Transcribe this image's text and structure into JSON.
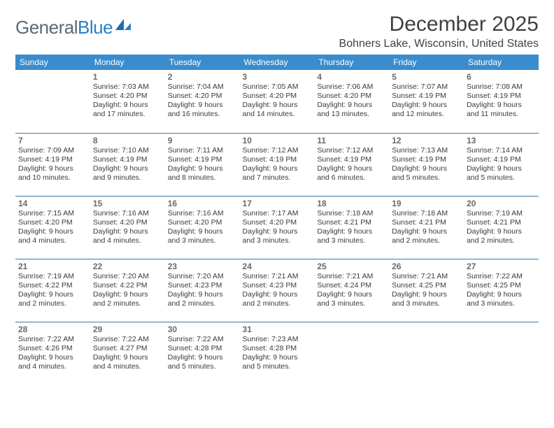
{
  "brand": {
    "name_part1": "General",
    "name_part2": "Blue"
  },
  "title": "December 2025",
  "location": "Bohners Lake, Wisconsin, United States",
  "colors": {
    "header_bg": "#3a8ccc",
    "header_text": "#ffffff",
    "row_divider": "#3a7aa8",
    "daynum_color": "#6a6a6a",
    "body_text": "#3a3a3a",
    "title_color": "#404040",
    "logo_gray": "#5a6a78",
    "logo_blue": "#2a7fc4",
    "background": "#ffffff"
  },
  "typography": {
    "title_fontsize": 30,
    "location_fontsize": 16,
    "header_fontsize": 12,
    "daynum_fontsize": 12,
    "info_fontsize": 10.5,
    "logo_fontsize": 26
  },
  "weekdays": [
    "Sunday",
    "Monday",
    "Tuesday",
    "Wednesday",
    "Thursday",
    "Friday",
    "Saturday"
  ],
  "weeks": [
    [
      null,
      {
        "d": "1",
        "sr": "Sunrise: 7:03 AM",
        "ss": "Sunset: 4:20 PM",
        "dl": "Daylight: 9 hours and 17 minutes."
      },
      {
        "d": "2",
        "sr": "Sunrise: 7:04 AM",
        "ss": "Sunset: 4:20 PM",
        "dl": "Daylight: 9 hours and 16 minutes."
      },
      {
        "d": "3",
        "sr": "Sunrise: 7:05 AM",
        "ss": "Sunset: 4:20 PM",
        "dl": "Daylight: 9 hours and 14 minutes."
      },
      {
        "d": "4",
        "sr": "Sunrise: 7:06 AM",
        "ss": "Sunset: 4:20 PM",
        "dl": "Daylight: 9 hours and 13 minutes."
      },
      {
        "d": "5",
        "sr": "Sunrise: 7:07 AM",
        "ss": "Sunset: 4:19 PM",
        "dl": "Daylight: 9 hours and 12 minutes."
      },
      {
        "d": "6",
        "sr": "Sunrise: 7:08 AM",
        "ss": "Sunset: 4:19 PM",
        "dl": "Daylight: 9 hours and 11 minutes."
      }
    ],
    [
      {
        "d": "7",
        "sr": "Sunrise: 7:09 AM",
        "ss": "Sunset: 4:19 PM",
        "dl": "Daylight: 9 hours and 10 minutes."
      },
      {
        "d": "8",
        "sr": "Sunrise: 7:10 AM",
        "ss": "Sunset: 4:19 PM",
        "dl": "Daylight: 9 hours and 9 minutes."
      },
      {
        "d": "9",
        "sr": "Sunrise: 7:11 AM",
        "ss": "Sunset: 4:19 PM",
        "dl": "Daylight: 9 hours and 8 minutes."
      },
      {
        "d": "10",
        "sr": "Sunrise: 7:12 AM",
        "ss": "Sunset: 4:19 PM",
        "dl": "Daylight: 9 hours and 7 minutes."
      },
      {
        "d": "11",
        "sr": "Sunrise: 7:12 AM",
        "ss": "Sunset: 4:19 PM",
        "dl": "Daylight: 9 hours and 6 minutes."
      },
      {
        "d": "12",
        "sr": "Sunrise: 7:13 AM",
        "ss": "Sunset: 4:19 PM",
        "dl": "Daylight: 9 hours and 5 minutes."
      },
      {
        "d": "13",
        "sr": "Sunrise: 7:14 AM",
        "ss": "Sunset: 4:19 PM",
        "dl": "Daylight: 9 hours and 5 minutes."
      }
    ],
    [
      {
        "d": "14",
        "sr": "Sunrise: 7:15 AM",
        "ss": "Sunset: 4:20 PM",
        "dl": "Daylight: 9 hours and 4 minutes."
      },
      {
        "d": "15",
        "sr": "Sunrise: 7:16 AM",
        "ss": "Sunset: 4:20 PM",
        "dl": "Daylight: 9 hours and 4 minutes."
      },
      {
        "d": "16",
        "sr": "Sunrise: 7:16 AM",
        "ss": "Sunset: 4:20 PM",
        "dl": "Daylight: 9 hours and 3 minutes."
      },
      {
        "d": "17",
        "sr": "Sunrise: 7:17 AM",
        "ss": "Sunset: 4:20 PM",
        "dl": "Daylight: 9 hours and 3 minutes."
      },
      {
        "d": "18",
        "sr": "Sunrise: 7:18 AM",
        "ss": "Sunset: 4:21 PM",
        "dl": "Daylight: 9 hours and 3 minutes."
      },
      {
        "d": "19",
        "sr": "Sunrise: 7:18 AM",
        "ss": "Sunset: 4:21 PM",
        "dl": "Daylight: 9 hours and 2 minutes."
      },
      {
        "d": "20",
        "sr": "Sunrise: 7:19 AM",
        "ss": "Sunset: 4:21 PM",
        "dl": "Daylight: 9 hours and 2 minutes."
      }
    ],
    [
      {
        "d": "21",
        "sr": "Sunrise: 7:19 AM",
        "ss": "Sunset: 4:22 PM",
        "dl": "Daylight: 9 hours and 2 minutes."
      },
      {
        "d": "22",
        "sr": "Sunrise: 7:20 AM",
        "ss": "Sunset: 4:22 PM",
        "dl": "Daylight: 9 hours and 2 minutes."
      },
      {
        "d": "23",
        "sr": "Sunrise: 7:20 AM",
        "ss": "Sunset: 4:23 PM",
        "dl": "Daylight: 9 hours and 2 minutes."
      },
      {
        "d": "24",
        "sr": "Sunrise: 7:21 AM",
        "ss": "Sunset: 4:23 PM",
        "dl": "Daylight: 9 hours and 2 minutes."
      },
      {
        "d": "25",
        "sr": "Sunrise: 7:21 AM",
        "ss": "Sunset: 4:24 PM",
        "dl": "Daylight: 9 hours and 3 minutes."
      },
      {
        "d": "26",
        "sr": "Sunrise: 7:21 AM",
        "ss": "Sunset: 4:25 PM",
        "dl": "Daylight: 9 hours and 3 minutes."
      },
      {
        "d": "27",
        "sr": "Sunrise: 7:22 AM",
        "ss": "Sunset: 4:25 PM",
        "dl": "Daylight: 9 hours and 3 minutes."
      }
    ],
    [
      {
        "d": "28",
        "sr": "Sunrise: 7:22 AM",
        "ss": "Sunset: 4:26 PM",
        "dl": "Daylight: 9 hours and 4 minutes."
      },
      {
        "d": "29",
        "sr": "Sunrise: 7:22 AM",
        "ss": "Sunset: 4:27 PM",
        "dl": "Daylight: 9 hours and 4 minutes."
      },
      {
        "d": "30",
        "sr": "Sunrise: 7:22 AM",
        "ss": "Sunset: 4:28 PM",
        "dl": "Daylight: 9 hours and 5 minutes."
      },
      {
        "d": "31",
        "sr": "Sunrise: 7:23 AM",
        "ss": "Sunset: 4:28 PM",
        "dl": "Daylight: 9 hours and 5 minutes."
      },
      null,
      null,
      null
    ]
  ]
}
